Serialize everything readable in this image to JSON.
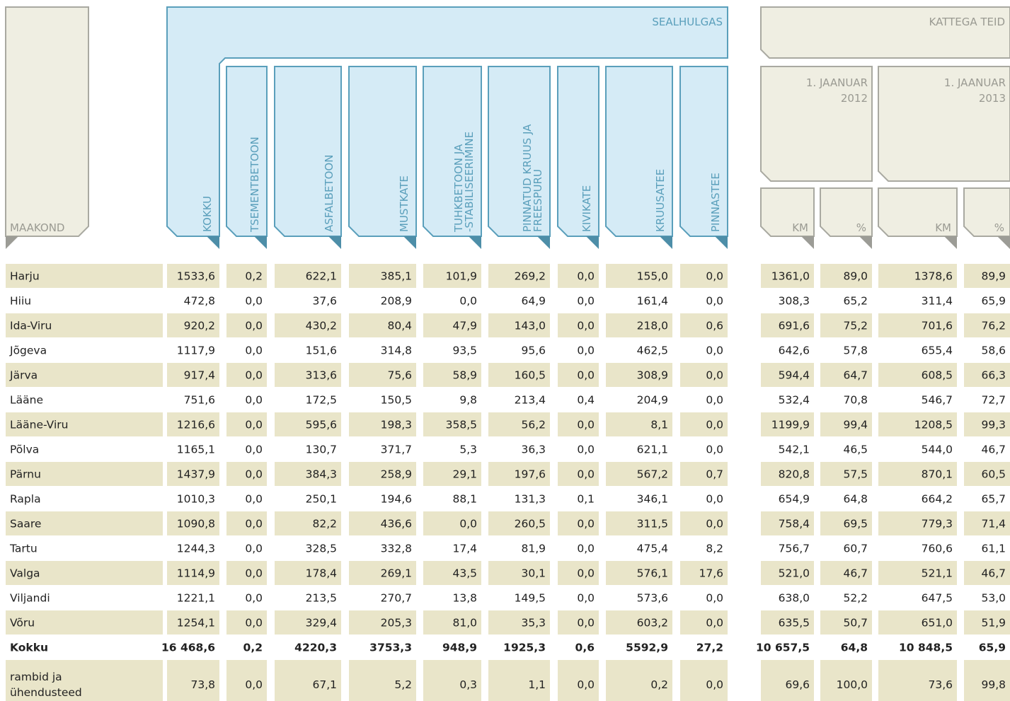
{
  "header": {
    "maakond": "MAAKOND",
    "sealhulgas": "SEALHULGAS",
    "kattega_teid": "KATTEGA TEID",
    "dates": [
      [
        "1. JAANUAR",
        "2012"
      ],
      [
        "1. JAANUAR",
        "2013"
      ]
    ],
    "units": [
      "KM",
      "%",
      "KM",
      "%"
    ]
  },
  "columns": [
    [
      "KOKKU"
    ],
    [
      "TSEMENTBETOON"
    ],
    [
      "ASFALBETOON"
    ],
    [
      "MUSTKATE"
    ],
    [
      "TUHKBETOON JA",
      "-STABILISEERIMINE"
    ],
    [
      "PINNATUD KRUUS JA",
      "FREESPURU"
    ],
    [
      "KIVIKATE"
    ],
    [
      "KRUUSATEE"
    ],
    [
      "PINNASTEE"
    ]
  ],
  "table": {
    "rows": [
      {
        "name": "Harju",
        "values": [
          "1533,6",
          "0,2",
          "622,1",
          "385,1",
          "101,9",
          "269,2",
          "0,0",
          "155,0",
          "0,0",
          "1361,0",
          "89,0",
          "1378,6",
          "89,9"
        ]
      },
      {
        "name": "Hiiu",
        "values": [
          "472,8",
          "0,0",
          "37,6",
          "208,9",
          "0,0",
          "64,9",
          "0,0",
          "161,4",
          "0,0",
          "308,3",
          "65,2",
          "311,4",
          "65,9"
        ]
      },
      {
        "name": "Ida-Viru",
        "values": [
          "920,2",
          "0,0",
          "430,2",
          "80,4",
          "47,9",
          "143,0",
          "0,0",
          "218,0",
          "0,6",
          "691,6",
          "75,2",
          "701,6",
          "76,2"
        ]
      },
      {
        "name": "Jõgeva",
        "values": [
          "1117,9",
          "0,0",
          "151,6",
          "314,8",
          "93,5",
          "95,6",
          "0,0",
          "462,5",
          "0,0",
          "642,6",
          "57,8",
          "655,4",
          "58,6"
        ]
      },
      {
        "name": "Järva",
        "values": [
          "917,4",
          "0,0",
          "313,6",
          "75,6",
          "58,9",
          "160,5",
          "0,0",
          "308,9",
          "0,0",
          "594,4",
          "64,7",
          "608,5",
          "66,3"
        ]
      },
      {
        "name": "Lääne",
        "values": [
          "751,6",
          "0,0",
          "172,5",
          "150,5",
          "9,8",
          "213,4",
          "0,4",
          "204,9",
          "0,0",
          "532,4",
          "70,8",
          "546,7",
          "72,7"
        ]
      },
      {
        "name": "Lääne-Viru",
        "values": [
          "1216,6",
          "0,0",
          "595,6",
          "198,3",
          "358,5",
          "56,2",
          "0,0",
          "8,1",
          "0,0",
          "1199,9",
          "99,4",
          "1208,5",
          "99,3"
        ]
      },
      {
        "name": "Põlva",
        "values": [
          "1165,1",
          "0,0",
          "130,7",
          "371,7",
          "5,3",
          "36,3",
          "0,0",
          "621,1",
          "0,0",
          "542,1",
          "46,5",
          "544,0",
          "46,7"
        ]
      },
      {
        "name": "Pärnu",
        "values": [
          "1437,9",
          "0,0",
          "384,3",
          "258,9",
          "29,1",
          "197,6",
          "0,0",
          "567,2",
          "0,7",
          "820,8",
          "57,5",
          "870,1",
          "60,5"
        ]
      },
      {
        "name": "Rapla",
        "values": [
          "1010,3",
          "0,0",
          "250,1",
          "194,6",
          "88,1",
          "131,3",
          "0,1",
          "346,1",
          "0,0",
          "654,9",
          "64,8",
          "664,2",
          "65,7"
        ]
      },
      {
        "name": "Saare",
        "values": [
          "1090,8",
          "0,0",
          "82,2",
          "436,6",
          "0,0",
          "260,5",
          "0,0",
          "311,5",
          "0,0",
          "758,4",
          "69,5",
          "779,3",
          "71,4"
        ]
      },
      {
        "name": "Tartu",
        "values": [
          "1244,3",
          "0,0",
          "328,5",
          "332,8",
          "17,4",
          "81,9",
          "0,0",
          "475,4",
          "8,2",
          "756,7",
          "60,7",
          "760,6",
          "61,1"
        ]
      },
      {
        "name": "Valga",
        "values": [
          "1114,9",
          "0,0",
          "178,4",
          "269,1",
          "43,5",
          "30,1",
          "0,0",
          "576,1",
          "17,6",
          "521,0",
          "46,7",
          "521,1",
          "46,7"
        ]
      },
      {
        "name": "Viljandi",
        "values": [
          "1221,1",
          "0,0",
          "213,5",
          "270,7",
          "13,8",
          "149,5",
          "0,0",
          "573,6",
          "0,0",
          "638,0",
          "52,2",
          "647,5",
          "53,0"
        ]
      },
      {
        "name": "Võru",
        "values": [
          "1254,1",
          "0,0",
          "329,4",
          "205,3",
          "81,0",
          "35,3",
          "0,0",
          "603,2",
          "0,0",
          "635,5",
          "50,7",
          "651,0",
          "51,9"
        ]
      },
      {
        "name": "Kokku",
        "values": [
          "16 468,6",
          "0,2",
          "4220,3",
          "3753,3",
          "948,9",
          "1925,3",
          "0,6",
          "5592,9",
          "27,2",
          "10 657,5",
          "64,8",
          "10 848,5",
          "65,9"
        ]
      },
      {
        "name": [
          "rambid ja",
          "ühendusteed"
        ],
        "values": [
          "73,8",
          "0,0",
          "67,1",
          "5,2",
          "0,3",
          "1,1",
          "0,0",
          "0,2",
          "0,0",
          "69,6",
          "100,0",
          "73,6",
          "99,8"
        ]
      }
    ]
  }
}
